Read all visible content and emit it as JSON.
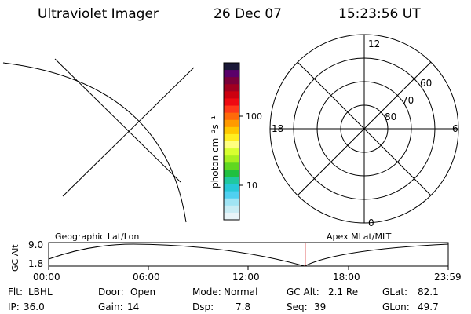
{
  "header": {
    "instrument": "Ultraviolet Imager",
    "date": "26 Dec 07",
    "time": "15:23:56 UT"
  },
  "colorbar": {
    "unit_label": "photon cm⁻²s⁻¹",
    "tick_100": "100",
    "tick_10": "10",
    "colors": [
      "#1a1838",
      "#5a006a",
      "#7a003a",
      "#a00020",
      "#cc0010",
      "#ee0a12",
      "#ff3a1a",
      "#ff6a0a",
      "#ff9a00",
      "#ffc800",
      "#ffee20",
      "#ffff80",
      "#d8ff30",
      "#a8f020",
      "#60d820",
      "#20c040",
      "#20c8a0",
      "#28c8d8",
      "#50d0f0",
      "#a0e4f4",
      "#c8ecf4",
      "#e8f4f8"
    ]
  },
  "polar": {
    "mlt_labels": {
      "top": "12",
      "bottom": "0",
      "left": "18",
      "right": "6"
    },
    "lat_labels": {
      "r60": "60",
      "r70": "70",
      "r80": "80"
    }
  },
  "timeline": {
    "left_title": "Geographic Lat/Lon",
    "right_title": "Apex MLat/MLT",
    "ylabel": "GC Alt",
    "ymax": "9.0",
    "ymin": "1.8",
    "xticks": [
      "00:00",
      "06:00",
      "12:00",
      "18:00",
      "23:59"
    ],
    "current_time_fraction": 0.642
  },
  "status": {
    "flt_label": "Flt:",
    "flt_value": "LBHL",
    "ip_label": "IP:",
    "ip_value": "36.0",
    "door_label": "Door:",
    "door_value": "Open",
    "gain_label": "Gain:",
    "gain_value": "14",
    "mode_label": "Mode:",
    "mode_value": "Normal",
    "dsp_label": "Dsp:",
    "dsp_value": "7.8",
    "gcalt_label": "GC Alt:",
    "gcalt_value": "2.1 Re",
    "seq_label": "Seq:",
    "seq_value": "39",
    "glat_label": "GLat:",
    "glat_value": "82.1",
    "glon_label": "GLon:",
    "glon_value": "49.7"
  }
}
